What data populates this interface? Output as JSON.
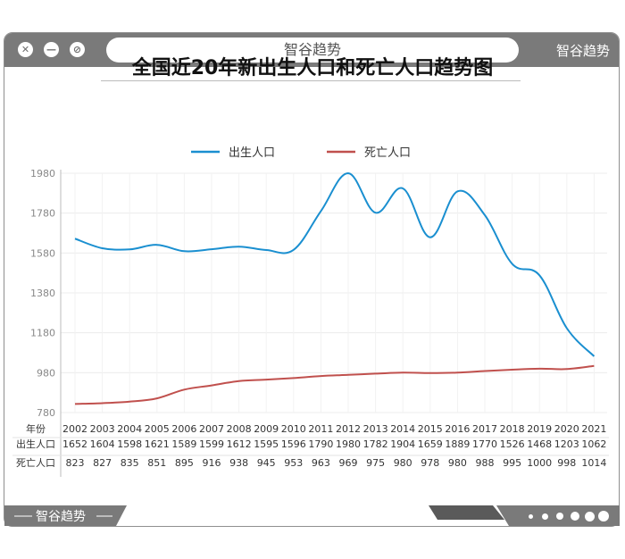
{
  "window": {
    "address_text": "智谷趋势",
    "brand_top": "智谷趋势",
    "brand_bottom": "智谷趋势"
  },
  "colors": {
    "births": "#1a8fd0",
    "deaths": "#c0504d",
    "frame": "#7a7a7a"
  },
  "chart_data": {
    "type": "line",
    "title": "全国近20年新出生人口和死亡人口趋势图",
    "x": [
      "2002",
      "2003",
      "2004",
      "2005",
      "2006",
      "2007",
      "2008",
      "2009",
      "2010",
      "2011",
      "2012",
      "2013",
      "2014",
      "2015",
      "2016",
      "2017",
      "2018",
      "2019",
      "2020",
      "2021"
    ],
    "series": [
      {
        "name": "出生人口",
        "values": [
          1652,
          1604,
          1598,
          1621,
          1589,
          1599,
          1612,
          1595,
          1596,
          1790,
          1980,
          1782,
          1904,
          1659,
          1889,
          1770,
          1526,
          1468,
          1203,
          1062
        ]
      },
      {
        "name": "死亡人口",
        "values": [
          823,
          827,
          835,
          851,
          895,
          916,
          938,
          945,
          953,
          963,
          969,
          975,
          980,
          978,
          980,
          988,
          995,
          1000,
          998,
          1014
        ]
      }
    ],
    "yticks": [
      780,
      980,
      1180,
      1380,
      1580,
      1780,
      1980
    ],
    "ylim": [
      780,
      1980
    ],
    "grid": true,
    "legend_position": "top-center",
    "table": {
      "header_label": "年份",
      "row_labels": [
        "出生人口",
        "死亡人口"
      ]
    }
  }
}
